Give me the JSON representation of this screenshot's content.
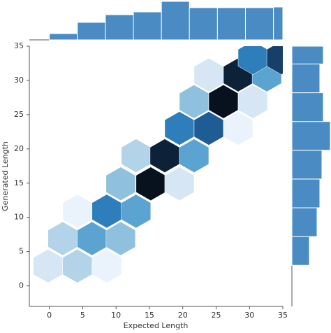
{
  "chart_data": {
    "type": "hexbin",
    "x_label": "Expected Length",
    "y_label": "Generated Length",
    "xlim": [
      -3,
      35
    ],
    "ylim": [
      -3,
      35
    ],
    "xticks": [
      0,
      5,
      10,
      15,
      20,
      25,
      30,
      35
    ],
    "yticks": [
      0,
      5,
      10,
      15,
      20,
      25,
      30,
      35
    ],
    "colors": [
      "#eaf3fb",
      "#d6e6f4",
      "#b3d3e8",
      "#8fc1de",
      "#5ba3d0",
      "#2e7ebc",
      "#1f5c94",
      "#163f6a",
      "#0d2238",
      "#07121e"
    ],
    "hexes": {
      "x": [
        -0.2,
        4.2,
        8.6,
        2,
        6.4,
        10.7,
        4.2,
        8.6,
        13,
        10.7,
        15.2,
        19.5,
        13,
        17.3,
        21.7,
        19.5,
        23.9,
        28.3,
        21.7,
        26.1,
        30.5,
        23.9,
        28.3,
        32.6,
        30.5,
        34.8
      ],
      "y": [
        2.9,
        2.9,
        2.9,
        6.9,
        6.9,
        6.9,
        10.9,
        10.9,
        10.9,
        14.9,
        14.9,
        14.9,
        19,
        19,
        19,
        23,
        23,
        23,
        26.9,
        26.9,
        26.9,
        30.8,
        30.8,
        30.8,
        33.3,
        33.3
      ],
      "values": [
        2,
        3,
        1,
        3,
        5,
        4,
        1,
        6,
        5,
        4,
        10,
        2,
        3,
        9,
        5,
        6,
        7,
        1,
        4,
        10,
        2,
        2,
        9,
        5,
        6,
        8
      ]
    },
    "top_hist": {
      "color": "#4a8bc4",
      "bins": [
        0,
        4.2,
        8.4,
        12.6,
        16.8,
        21,
        25.2,
        29.4,
        33.6,
        35
      ],
      "counts": [
        9,
        25,
        36,
        40,
        55,
        46,
        46,
        46,
        47
      ]
    },
    "right_hist": {
      "color": "#4a8bc4",
      "bins": [
        3,
        7.2,
        11.4,
        15.6,
        19.8,
        24,
        28.2,
        32.4,
        35
      ],
      "counts": [
        25,
        36,
        40,
        43,
        55,
        45,
        40,
        45
      ]
    }
  }
}
